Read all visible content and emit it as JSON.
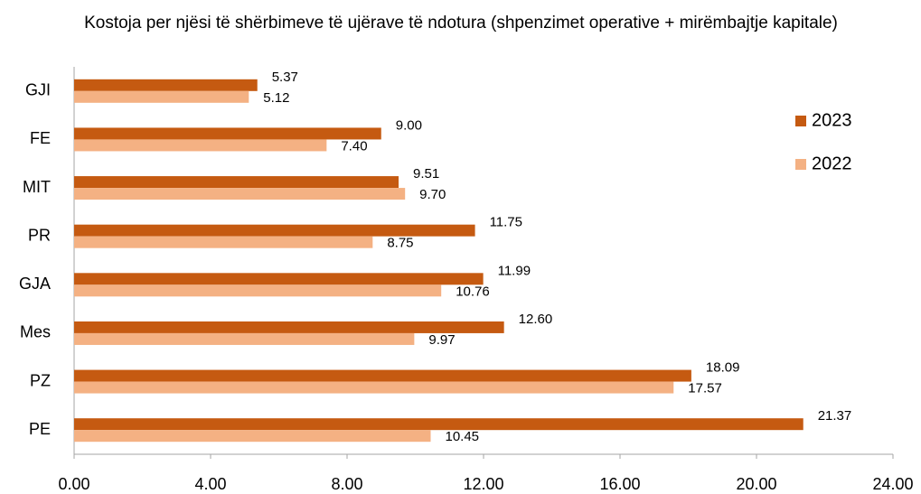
{
  "chart_data": {
    "type": "hbar",
    "title": "Kostoja per njësi të shërbimeve të ujërave të ndotura (shpenzimet operative + mirëmbajtje kapitale)",
    "categories": [
      "GJI",
      "FE",
      "MIT",
      "PR",
      "GJA",
      "Mes",
      "PZ",
      "PE"
    ],
    "series": [
      {
        "name": "2023",
        "color": "#c55a11",
        "values": [
          5.37,
          9.0,
          9.51,
          11.75,
          11.99,
          12.6,
          18.09,
          21.37
        ],
        "value_labels": [
          "5.37",
          "9.00",
          "9.51",
          "11.75",
          "11.99",
          "12.60",
          "18.09",
          "21.37"
        ]
      },
      {
        "name": "2022",
        "color": "#f4b183",
        "values": [
          5.12,
          7.4,
          9.7,
          8.75,
          10.76,
          9.97,
          17.57,
          10.45
        ],
        "value_labels": [
          "5.12",
          "7.40",
          "9.70",
          "8.75",
          "10.76",
          "9.97",
          "17.57",
          "10.45"
        ]
      }
    ],
    "xlim": [
      0,
      24
    ],
    "xticks": [
      {
        "value": 0,
        "label": "0.00"
      },
      {
        "value": 4,
        "label": "4.00"
      },
      {
        "value": 8,
        "label": "8.00"
      },
      {
        "value": 12,
        "label": "12.00"
      },
      {
        "value": 16,
        "label": "16.00"
      },
      {
        "value": 20,
        "label": "20.00"
      },
      {
        "value": 24,
        "label": "24.00"
      }
    ],
    "legend": "right"
  }
}
